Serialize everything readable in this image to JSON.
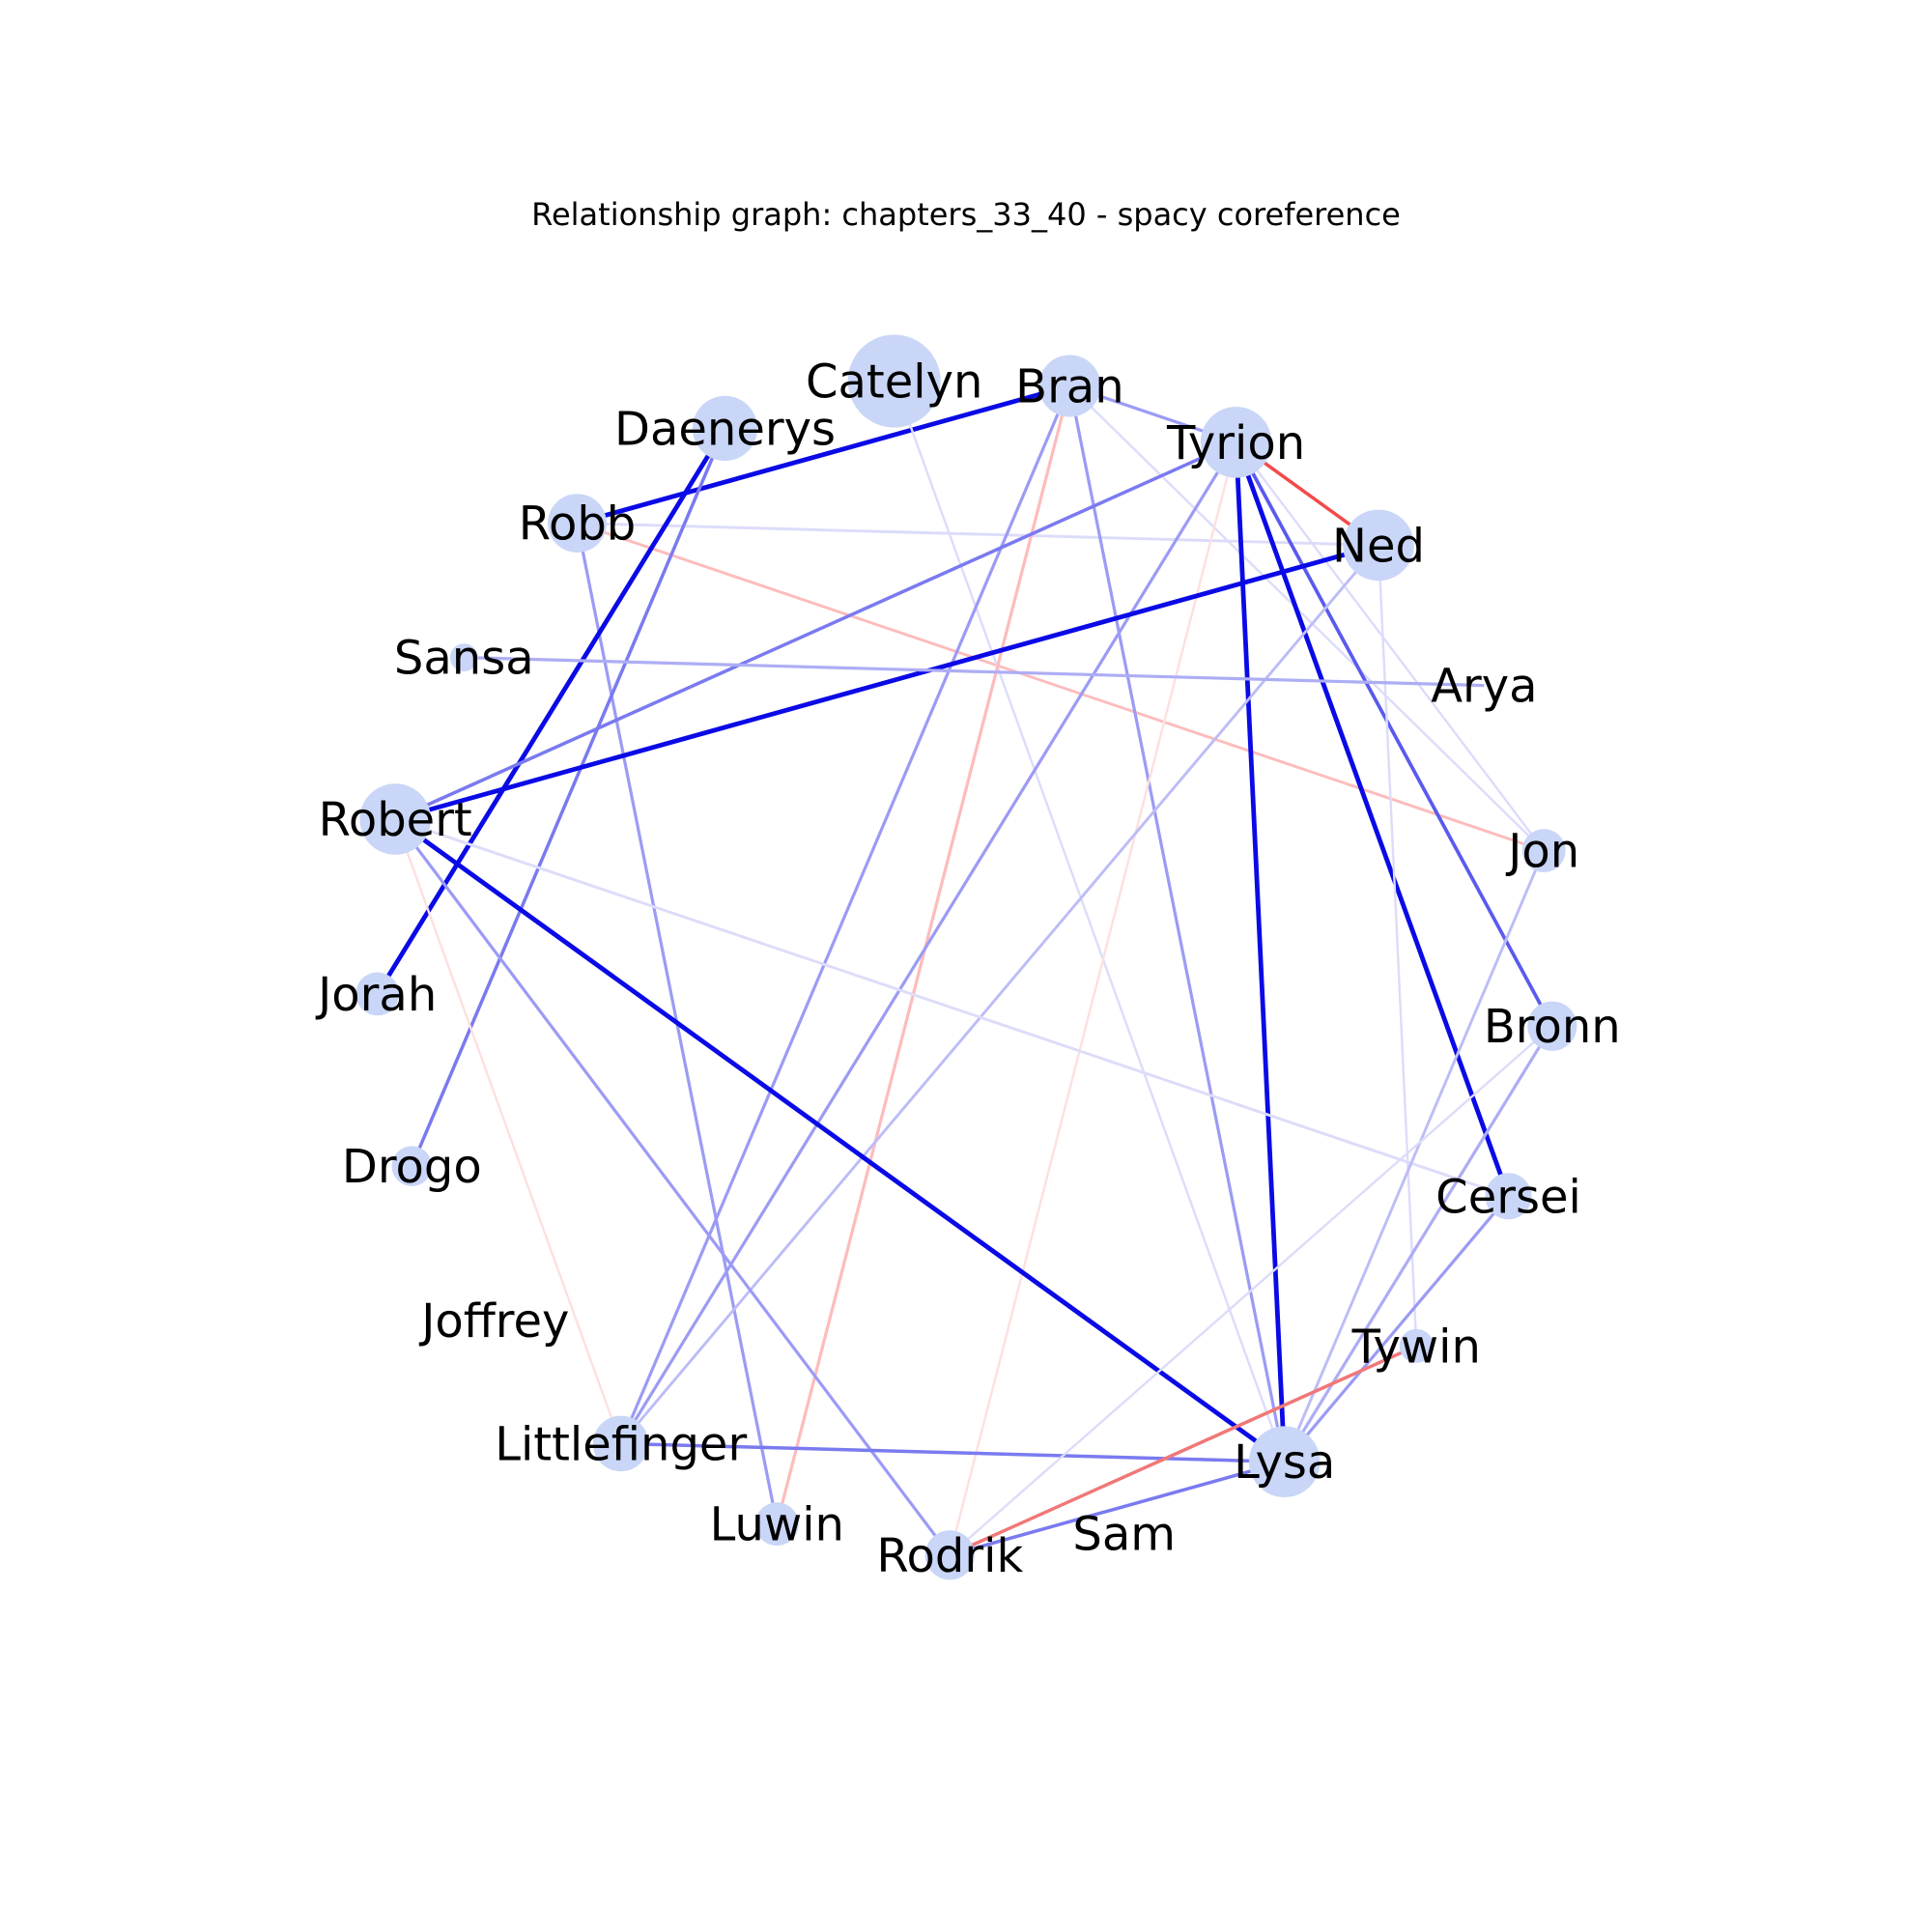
{
  "title": "Relationship graph: chapters_33_40 - spacy coreference",
  "node_color": "#c9d6f7",
  "nodes": [
    {
      "id": "Catelyn",
      "label": "Catelyn",
      "size": 3
    },
    {
      "id": "Bran",
      "label": "Bran",
      "size": 2
    },
    {
      "id": "Tyrion",
      "label": "Tyrion",
      "size": 2.3
    },
    {
      "id": "Ned",
      "label": "Ned",
      "size": 2.3
    },
    {
      "id": "Arya",
      "label": "Arya",
      "size": 0
    },
    {
      "id": "Jon",
      "label": "Jon",
      "size": 1.4
    },
    {
      "id": "Bronn",
      "label": "Bronn",
      "size": 1.6
    },
    {
      "id": "Cersei",
      "label": "Cersei",
      "size": 1.5
    },
    {
      "id": "Tywin",
      "label": "Tywin",
      "size": 1.1
    },
    {
      "id": "Lysa",
      "label": "Lysa",
      "size": 2.3
    },
    {
      "id": "Sam",
      "label": "Sam",
      "size": 0
    },
    {
      "id": "Rodrik",
      "label": "Rodrik",
      "size": 1.6
    },
    {
      "id": "Luwin",
      "label": "Luwin",
      "size": 1.4
    },
    {
      "id": "Littlefinger",
      "label": "Littlefinger",
      "size": 1.8
    },
    {
      "id": "Joffrey",
      "label": "Joffrey",
      "size": 0
    },
    {
      "id": "Drogo",
      "label": "Drogo",
      "size": 1.3
    },
    {
      "id": "Jorah",
      "label": "Jorah",
      "size": 1.4
    },
    {
      "id": "Robert",
      "label": "Robert",
      "size": 2.3
    },
    {
      "id": "Sansa",
      "label": "Sansa",
      "size": 0.9
    },
    {
      "id": "Robb",
      "label": "Robb",
      "size": 1.9
    },
    {
      "id": "Daenerys",
      "label": "Daenerys",
      "size": 2.1
    }
  ],
  "edges": [
    {
      "source": "Robb",
      "target": "Bran",
      "color": "#0a0ae6",
      "weight": 3
    },
    {
      "source": "Robb",
      "target": "Luwin",
      "color": "#9b9bf5",
      "weight": 2
    },
    {
      "source": "Robb",
      "target": "Ned",
      "color": "#dcdcfa",
      "weight": 1.8
    },
    {
      "source": "Robb",
      "target": "Jon",
      "color": "#fdbcbc",
      "weight": 1.8
    },
    {
      "source": "Daenerys",
      "target": "Jorah",
      "color": "#0a0ae6",
      "weight": 3
    },
    {
      "source": "Daenerys",
      "target": "Drogo",
      "color": "#7a7af0",
      "weight": 2.2
    },
    {
      "source": "Catelyn",
      "target": "Lysa",
      "color": "#dcdcfa",
      "weight": 1.5
    },
    {
      "source": "Bran",
      "target": "Tyrion",
      "color": "#9b9bf5",
      "weight": 2
    },
    {
      "source": "Bran",
      "target": "Lysa",
      "color": "#9b9bf5",
      "weight": 2
    },
    {
      "source": "Bran",
      "target": "Littlefinger",
      "color": "#9b9bf5",
      "weight": 2
    },
    {
      "source": "Bran",
      "target": "Luwin",
      "color": "#fdbcbc",
      "weight": 2
    },
    {
      "source": "Bran",
      "target": "Jon",
      "color": "#dcdcfa",
      "weight": 1.5
    },
    {
      "source": "Tyrion",
      "target": "Ned",
      "color": "#f24a4a",
      "weight": 2.2
    },
    {
      "source": "Tyrion",
      "target": "Lysa",
      "color": "#0a0ae6",
      "weight": 3
    },
    {
      "source": "Tyrion",
      "target": "Cersei",
      "color": "#0a0ae6",
      "weight": 3
    },
    {
      "source": "Tyrion",
      "target": "Bronn",
      "color": "#5a5aee",
      "weight": 2.3
    },
    {
      "source": "Tyrion",
      "target": "Robert",
      "color": "#7a7af0",
      "weight": 2.2
    },
    {
      "source": "Tyrion",
      "target": "Littlefinger",
      "color": "#9b9bf5",
      "weight": 2
    },
    {
      "source": "Tyrion",
      "target": "Rodrik",
      "color": "#fde0e0",
      "weight": 1.5
    },
    {
      "source": "Tyrion",
      "target": "Jon",
      "color": "#dcdcfa",
      "weight": 1.5
    },
    {
      "source": "Ned",
      "target": "Robert",
      "color": "#0a0ae6",
      "weight": 3
    },
    {
      "source": "Ned",
      "target": "Littlefinger",
      "color": "#bcbcf7",
      "weight": 1.8
    },
    {
      "source": "Ned",
      "target": "Tywin",
      "color": "#dcdcfa",
      "weight": 1.5
    },
    {
      "source": "Sansa",
      "target": "Arya",
      "color": "#adadf5",
      "weight": 2
    },
    {
      "source": "Robert",
      "target": "Lysa",
      "color": "#0a0ae6",
      "weight": 3
    },
    {
      "source": "Robert",
      "target": "Rodrik",
      "color": "#9b9bf5",
      "weight": 2
    },
    {
      "source": "Robert",
      "target": "Cersei",
      "color": "#dcdcfa",
      "weight": 1.8
    },
    {
      "source": "Robert",
      "target": "Littlefinger",
      "color": "#fde0e0",
      "weight": 1.5
    },
    {
      "source": "Littlefinger",
      "target": "Lysa",
      "color": "#7a7af0",
      "weight": 2.2
    },
    {
      "source": "Lysa",
      "target": "Jon",
      "color": "#bcbcf7",
      "weight": 1.8
    },
    {
      "source": "Lysa",
      "target": "Bronn",
      "color": "#adadf5",
      "weight": 2
    },
    {
      "source": "Lysa",
      "target": "Cersei",
      "color": "#9b9bf5",
      "weight": 2
    },
    {
      "source": "Lysa",
      "target": "Rodrik",
      "color": "#7a7af0",
      "weight": 2.2
    },
    {
      "source": "Rodrik",
      "target": "Tywin",
      "color": "#f07878",
      "weight": 2.2
    },
    {
      "source": "Rodrik",
      "target": "Bronn",
      "color": "#dcdcfa",
      "weight": 1.5
    }
  ]
}
